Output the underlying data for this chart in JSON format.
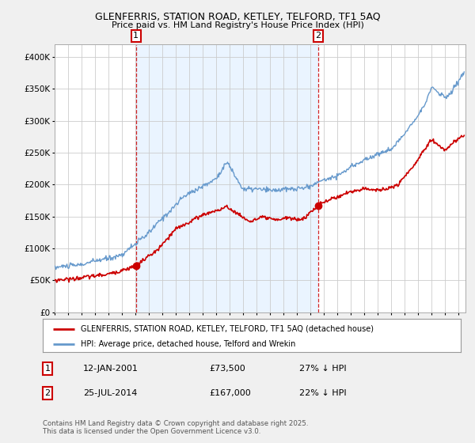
{
  "title1": "GLENFERRIS, STATION ROAD, KETLEY, TELFORD, TF1 5AQ",
  "title2": "Price paid vs. HM Land Registry's House Price Index (HPI)",
  "legend_line1": "GLENFERRIS, STATION ROAD, KETLEY, TELFORD, TF1 5AQ (detached house)",
  "legend_line2": "HPI: Average price, detached house, Telford and Wrekin",
  "annotation1_date": "12-JAN-2001",
  "annotation1_price": "£73,500",
  "annotation1_hpi": "27% ↓ HPI",
  "annotation1_year": 2001.04,
  "annotation1_value_red": 73500,
  "annotation2_date": "25-JUL-2014",
  "annotation2_price": "£167,000",
  "annotation2_hpi": "22% ↓ HPI",
  "annotation2_year": 2014.56,
  "annotation2_value_red": 167000,
  "footer": "Contains HM Land Registry data © Crown copyright and database right 2025.\nThis data is licensed under the Open Government Licence v3.0.",
  "ylim": [
    0,
    420000
  ],
  "xlim_start": 1995.0,
  "xlim_end": 2025.5,
  "red_color": "#cc0000",
  "blue_color": "#6699cc",
  "blue_fill_color": "#ddeeff",
  "background_color": "#f0f0f0",
  "plot_bg_color": "#ffffff",
  "grid_color": "#cccccc"
}
